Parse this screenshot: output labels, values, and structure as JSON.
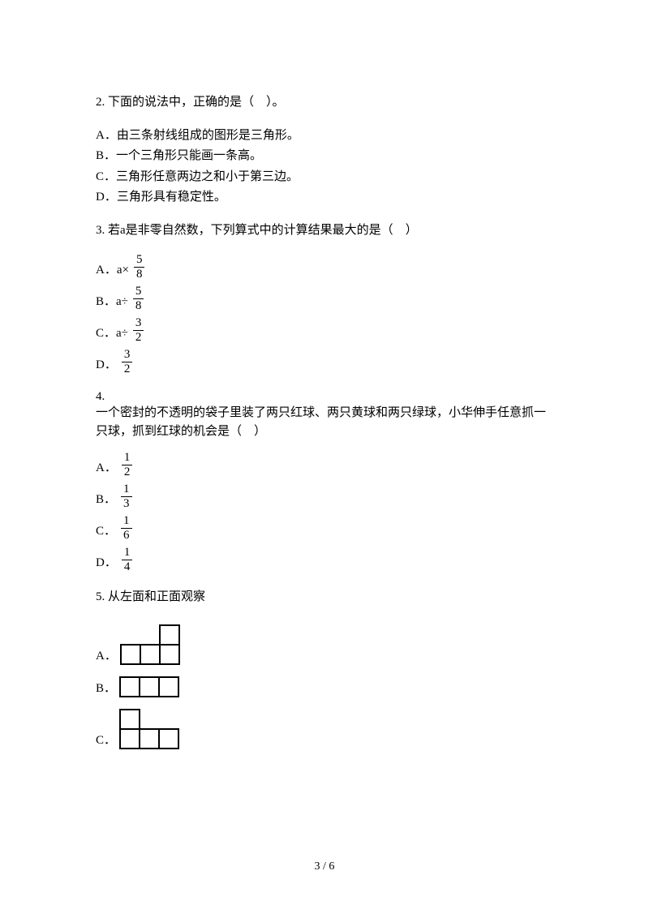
{
  "q2": {
    "stem": "2. 下面的说法中，正确的是（　）。",
    "A": "A．由三条射线组成的图形是三角形。",
    "B": "B．一个三角形只能画一条高。",
    "C": "C．三角形任意两边之和小于第三边。",
    "D": "D．三角形具有稳定性。"
  },
  "q3": {
    "stem": "3. 若a是非零自然数，下列算式中的计算结果最大的是（　）",
    "A_label": "A．a×",
    "A_num": "5",
    "A_den": "8",
    "B_label": "B．a÷",
    "B_num": "5",
    "B_den": "8",
    "C_label": "C．a÷",
    "C_num": "3",
    "C_den": "2",
    "D_label": "D．",
    "D_num": "3",
    "D_den": "2"
  },
  "q4": {
    "stem_num": "4.",
    "stem_body": "一个密封的不透明的袋子里装了两只红球、两只黄球和两只绿球，小华伸手任意抓一只球，抓到红球的机会是（　）",
    "A_label": "A．",
    "A_num": "1",
    "A_den": "2",
    "B_label": "B．",
    "B_num": "1",
    "B_den": "3",
    "C_label": "C．",
    "C_num": "1",
    "C_den": "6",
    "D_label": "D．",
    "D_num": "1",
    "D_den": "4"
  },
  "q5": {
    "stem": "5. 从左面和正面观察",
    "A_label": "A．",
    "B_label": "B．",
    "C_label": "C．",
    "shapes": {
      "cell_size": 24,
      "stroke": "#000000",
      "stroke_width": 2,
      "A": {
        "width_cells": 3,
        "height_cells": 2,
        "cells": [
          [
            2,
            0
          ],
          [
            0,
            1
          ],
          [
            1,
            1
          ],
          [
            2,
            1
          ]
        ]
      },
      "B": {
        "width_cells": 3,
        "height_cells": 1,
        "cells": [
          [
            0,
            0
          ],
          [
            1,
            0
          ],
          [
            2,
            0
          ]
        ]
      },
      "C": {
        "width_cells": 3,
        "height_cells": 2,
        "cells": [
          [
            0,
            0
          ],
          [
            0,
            1
          ],
          [
            1,
            1
          ],
          [
            2,
            1
          ]
        ]
      }
    }
  },
  "footer": "3 / 6",
  "colors": {
    "text": "#000000",
    "background": "#ffffff"
  }
}
